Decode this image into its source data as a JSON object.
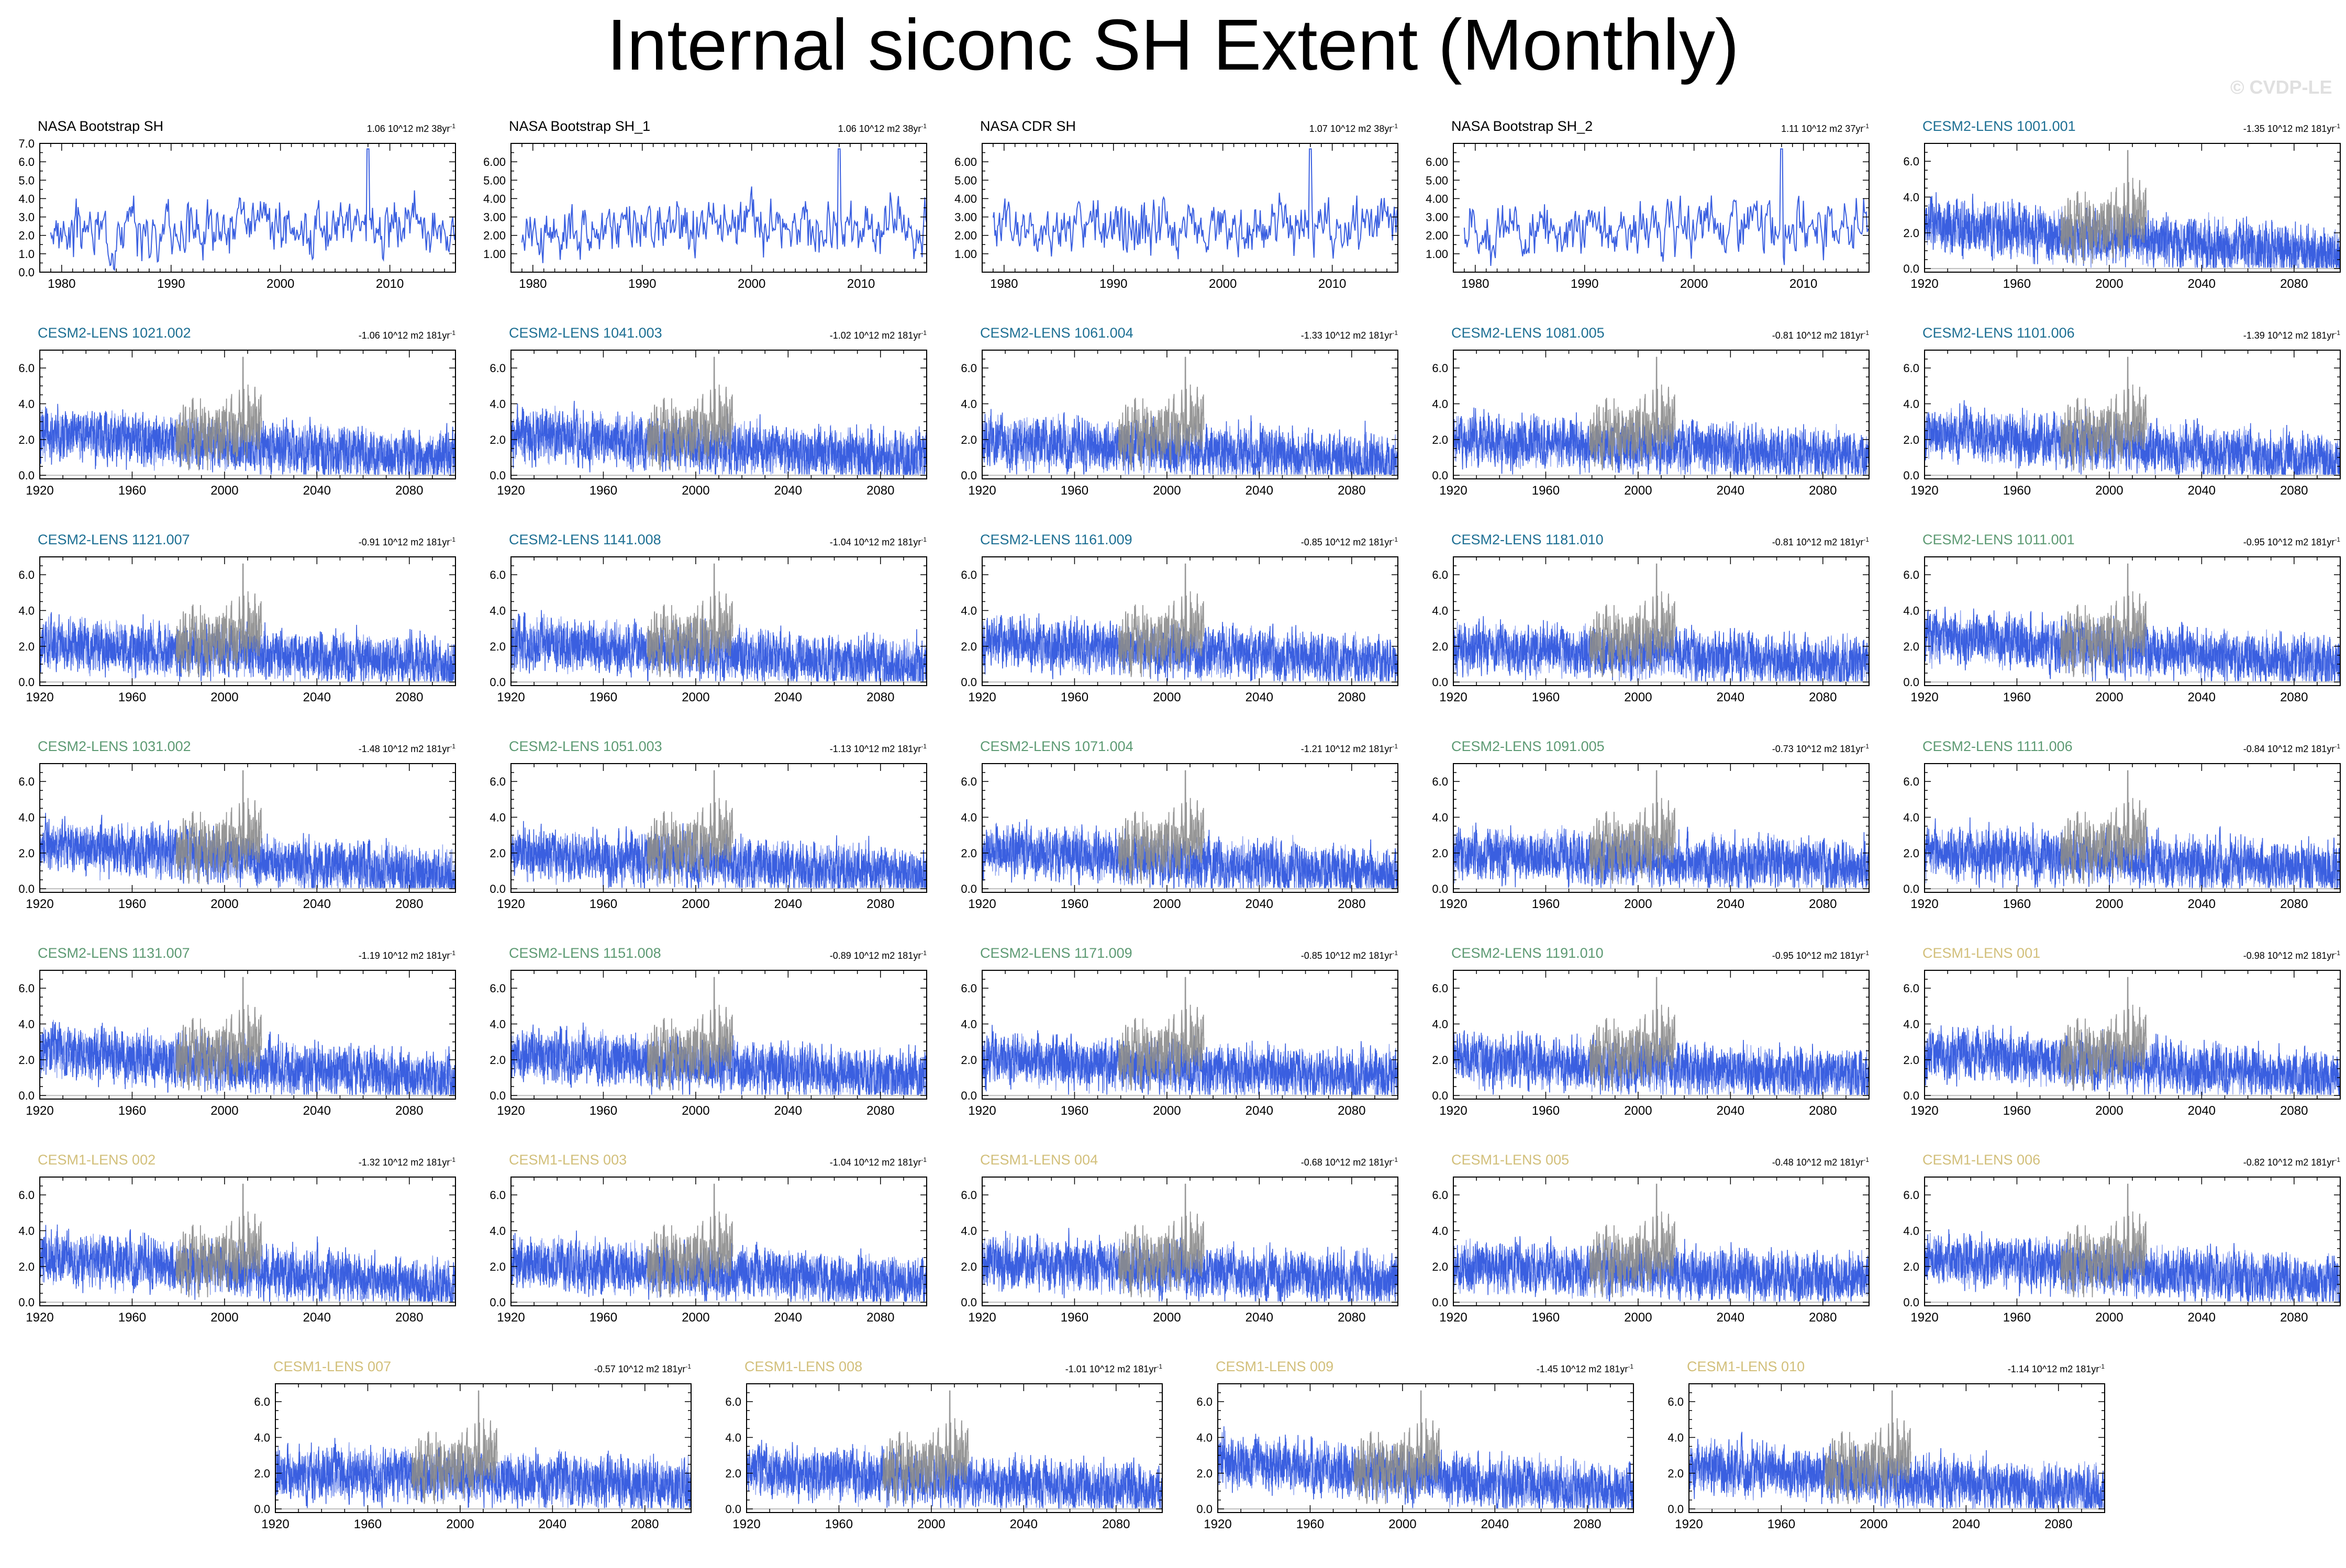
{
  "figure": {
    "title": "Internal siconc SH Extent (Monthly)",
    "watermark": "© CVDP-LE"
  },
  "colors": {
    "model_line": "#3a5fe0",
    "model_line_light": "#7b93ee",
    "obs_overlay": "#8c8c8c",
    "frame": "#000000",
    "label_obs": "#000000",
    "label_cesm2_a": "#1d6f93",
    "label_cesm2_b": "#5d9a73",
    "label_cesm1": "#d2bf7a"
  },
  "chart_data": [
    {
      "type": "line",
      "label": "NASA Bootstrap SH",
      "label_color": "#000000",
      "trend": "1.06 10^12 m2 38yr",
      "kind": "obs",
      "xlim": [
        1978,
        2016
      ],
      "xticks": [
        1980,
        1990,
        2000,
        2010
      ],
      "ylim": [
        0,
        7
      ],
      "yticks": [
        "0.0",
        "1.0",
        "2.0",
        "3.0",
        "4.0",
        "5.0",
        "6.0",
        "7.0"
      ],
      "series": [
        {
          "x_range": [
            1979,
            2016
          ],
          "mean": 2.2,
          "spike": {
            "x": 2008,
            "y": 6.7
          }
        }
      ]
    },
    {
      "type": "line",
      "label": "NASA Bootstrap SH_1",
      "label_color": "#000000",
      "trend": "1.06 10^12 m2 38yr",
      "kind": "obs",
      "xlim": [
        1978,
        2016
      ],
      "xticks": [
        1980,
        1990,
        2000,
        2010
      ],
      "ylim": [
        0,
        7
      ],
      "yticks": [
        "1.00",
        "2.00",
        "3.00",
        "4.00",
        "5.00",
        "6.00"
      ],
      "series": [
        {
          "x_range": [
            1979,
            2016
          ],
          "mean": 2.2,
          "spike": {
            "x": 2008,
            "y": 6.7
          }
        }
      ]
    },
    {
      "type": "line",
      "label": "NASA CDR SH",
      "label_color": "#000000",
      "trend": "1.07 10^12 m2 38yr",
      "kind": "obs",
      "xlim": [
        1978,
        2016
      ],
      "xticks": [
        1980,
        1990,
        2000,
        2010
      ],
      "ylim": [
        0,
        7
      ],
      "yticks": [
        "1.00",
        "2.00",
        "3.00",
        "4.00",
        "5.00",
        "6.00"
      ],
      "series": [
        {
          "x_range": [
            1979,
            2016
          ],
          "mean": 2.2,
          "spike": {
            "x": 2008,
            "y": 6.7
          }
        }
      ]
    },
    {
      "type": "line",
      "label": "NASA Bootstrap SH_2",
      "label_color": "#000000",
      "trend": "1.11 10^12 m2 37yr",
      "kind": "obs",
      "xlim": [
        1978,
        2016
      ],
      "xticks": [
        1980,
        1990,
        2000,
        2010
      ],
      "ylim": [
        0,
        7
      ],
      "yticks": [
        "1.00",
        "2.00",
        "3.00",
        "4.00",
        "5.00",
        "6.00"
      ],
      "series": [
        {
          "x_range": [
            1979,
            2016
          ],
          "mean": 2.2,
          "spike": {
            "x": 2008,
            "y": 6.7
          }
        }
      ]
    },
    {
      "type": "line",
      "label": "CESM2-LENS 1001.001",
      "label_color": "#1d6f93",
      "trend": "-1.35 10^12 m2 181yr",
      "kind": "model",
      "seed": 11,
      "start_mean": 2.5,
      "end_mean": 0.8
    },
    {
      "type": "line",
      "label": "CESM2-LENS 1021.002",
      "label_color": "#1d6f93",
      "trend": "-1.06 10^12 m2 181yr",
      "kind": "model",
      "seed": 12,
      "start_mean": 2.3,
      "end_mean": 0.9
    },
    {
      "type": "line",
      "label": "CESM2-LENS 1041.003",
      "label_color": "#1d6f93",
      "trend": "-1.02 10^12 m2 181yr",
      "kind": "model",
      "seed": 13,
      "start_mean": 2.2,
      "end_mean": 0.9
    },
    {
      "type": "line",
      "label": "CESM2-LENS 1061.004",
      "label_color": "#1d6f93",
      "trend": "-1.33 10^12 m2 181yr",
      "kind": "model",
      "seed": 14,
      "start_mean": 2.0,
      "end_mean": 0.8
    },
    {
      "type": "line",
      "label": "CESM2-LENS 1081.005",
      "label_color": "#1d6f93",
      "trend": "-0.81 10^12 m2 181yr",
      "kind": "model",
      "seed": 15,
      "start_mean": 2.0,
      "end_mean": 1.1
    },
    {
      "type": "line",
      "label": "CESM2-LENS 1101.006",
      "label_color": "#1d6f93",
      "trend": "-1.39 10^12 m2 181yr",
      "kind": "model",
      "seed": 16,
      "start_mean": 2.4,
      "end_mean": 0.8
    },
    {
      "type": "line",
      "label": "CESM2-LENS 1121.007",
      "label_color": "#1d6f93",
      "trend": "-0.91 10^12 m2 181yr",
      "kind": "model",
      "seed": 17,
      "start_mean": 2.2,
      "end_mean": 1.0
    },
    {
      "type": "line",
      "label": "CESM2-LENS 1141.008",
      "label_color": "#1d6f93",
      "trend": "-1.04 10^12 m2 181yr",
      "kind": "model",
      "seed": 18,
      "start_mean": 2.2,
      "end_mean": 0.9
    },
    {
      "type": "line",
      "label": "CESM2-LENS 1161.009",
      "label_color": "#1d6f93",
      "trend": "-0.85 10^12 m2 181yr",
      "kind": "model",
      "seed": 19,
      "start_mean": 2.3,
      "end_mean": 1.1
    },
    {
      "type": "line",
      "label": "CESM2-LENS 1181.010",
      "label_color": "#1d6f93",
      "trend": "-0.81 10^12 m2 181yr",
      "kind": "model",
      "seed": 20,
      "start_mean": 2.0,
      "end_mean": 1.0
    },
    {
      "type": "line",
      "label": "CESM2-LENS 1011.001",
      "label_color": "#5d9a73",
      "trend": "-0.95 10^12 m2 181yr",
      "kind": "model",
      "seed": 21,
      "start_mean": 2.6,
      "end_mean": 1.0
    },
    {
      "type": "line",
      "label": "CESM2-LENS 1031.002",
      "label_color": "#5d9a73",
      "trend": "-1.48 10^12 m2 181yr",
      "kind": "model",
      "seed": 22,
      "start_mean": 2.5,
      "end_mean": 0.7
    },
    {
      "type": "line",
      "label": "CESM2-LENS 1051.003",
      "label_color": "#5d9a73",
      "trend": "-1.13 10^12 m2 181yr",
      "kind": "model",
      "seed": 23,
      "start_mean": 2.0,
      "end_mean": 0.8
    },
    {
      "type": "line",
      "label": "CESM2-LENS 1071.004",
      "label_color": "#5d9a73",
      "trend": "-1.21 10^12 m2 181yr",
      "kind": "model",
      "seed": 24,
      "start_mean": 2.2,
      "end_mean": 0.8
    },
    {
      "type": "line",
      "label": "CESM2-LENS 1091.005",
      "label_color": "#5d9a73",
      "trend": "-0.73 10^12 m2 181yr",
      "kind": "model",
      "seed": 25,
      "start_mean": 2.0,
      "end_mean": 1.2
    },
    {
      "type": "line",
      "label": "CESM2-LENS 1111.006",
      "label_color": "#5d9a73",
      "trend": "-0.84 10^12 m2 181yr",
      "kind": "model",
      "seed": 26,
      "start_mean": 2.1,
      "end_mean": 1.1
    },
    {
      "type": "line",
      "label": "CESM2-LENS 1131.007",
      "label_color": "#5d9a73",
      "trend": "-1.19 10^12 m2 181yr",
      "kind": "model",
      "seed": 27,
      "start_mean": 2.5,
      "end_mean": 0.9
    },
    {
      "type": "line",
      "label": "CESM2-LENS 1151.008",
      "label_color": "#5d9a73",
      "trend": "-0.89 10^12 m2 181yr",
      "kind": "model",
      "seed": 28,
      "start_mean": 2.3,
      "end_mean": 1.0
    },
    {
      "type": "line",
      "label": "CESM2-LENS 1171.009",
      "label_color": "#5d9a73",
      "trend": "-0.85 10^12 m2 181yr",
      "kind": "model",
      "seed": 29,
      "start_mean": 2.0,
      "end_mean": 1.0
    },
    {
      "type": "line",
      "label": "CESM2-LENS 1191.010",
      "label_color": "#5d9a73",
      "trend": "-0.95 10^12 m2 181yr",
      "kind": "model",
      "seed": 30,
      "start_mean": 2.0,
      "end_mean": 1.0
    },
    {
      "type": "line",
      "label": "CESM1-LENS 001",
      "label_color": "#d2bf7a",
      "trend": "-0.98 10^12 m2 181yr",
      "kind": "model",
      "seed": 31,
      "start_mean": 2.4,
      "end_mean": 1.0
    },
    {
      "type": "line",
      "label": "CESM1-LENS 002",
      "label_color": "#d2bf7a",
      "trend": "-1.32 10^12 m2 181yr",
      "kind": "model",
      "seed": 32,
      "start_mean": 2.6,
      "end_mean": 0.9
    },
    {
      "type": "line",
      "label": "CESM1-LENS 003",
      "label_color": "#d2bf7a",
      "trend": "-1.04 10^12 m2 181yr",
      "kind": "model",
      "seed": 33,
      "start_mean": 2.3,
      "end_mean": 1.0
    },
    {
      "type": "line",
      "label": "CESM1-LENS 004",
      "label_color": "#d2bf7a",
      "trend": "-0.68 10^12 m2 181yr",
      "kind": "model",
      "seed": 34,
      "start_mean": 2.3,
      "end_mean": 1.2
    },
    {
      "type": "line",
      "label": "CESM1-LENS 005",
      "label_color": "#d2bf7a",
      "trend": "-0.48 10^12 m2 181yr",
      "kind": "model",
      "seed": 35,
      "start_mean": 2.0,
      "end_mean": 1.3
    },
    {
      "type": "line",
      "label": "CESM1-LENS 006",
      "label_color": "#d2bf7a",
      "trend": "-0.82 10^12 m2 181yr",
      "kind": "model",
      "seed": 36,
      "start_mean": 2.4,
      "end_mean": 1.1
    },
    {
      "type": "line",
      "label": "CESM1-LENS 007",
      "label_color": "#d2bf7a",
      "trend": "-0.57 10^12 m2 181yr",
      "kind": "model",
      "seed": 37,
      "start_mean": 2.1,
      "end_mean": 1.3
    },
    {
      "type": "line",
      "label": "CESM1-LENS 008",
      "label_color": "#d2bf7a",
      "trend": "-1.01 10^12 m2 181yr",
      "kind": "model",
      "seed": 38,
      "start_mean": 2.2,
      "end_mean": 1.0
    },
    {
      "type": "line",
      "label": "CESM1-LENS 009",
      "label_color": "#d2bf7a",
      "trend": "-1.45 10^12 m2 181yr",
      "kind": "model",
      "seed": 39,
      "start_mean": 2.7,
      "end_mean": 0.9
    },
    {
      "type": "line",
      "label": "CESM1-LENS 010",
      "label_color": "#d2bf7a",
      "trend": "-1.14 10^12 m2 181yr",
      "kind": "model",
      "seed": 40,
      "start_mean": 2.4,
      "end_mean": 0.9
    }
  ],
  "model_axes": {
    "xlim": [
      1920,
      2100
    ],
    "xticks": [
      1920,
      1960,
      2000,
      2040,
      2080
    ],
    "ylim": [
      -0.2,
      7.0
    ],
    "yticks": [
      "0.0",
      "2.0",
      "4.0",
      "6.0"
    ],
    "obs_overlay_range": [
      1979,
      2016
    ],
    "obs_overlay_spike": {
      "x": 2008,
      "y": 6.6
    }
  },
  "units_superscript": "-1"
}
